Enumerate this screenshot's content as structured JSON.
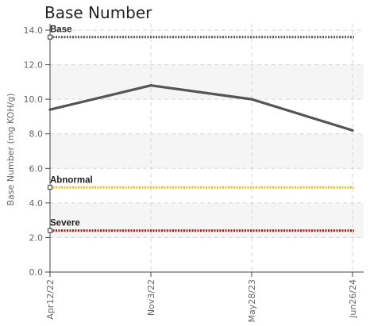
{
  "chart_data": {
    "type": "line",
    "title": "Base Number",
    "ylabel": "Base Number (mg KOH/g)",
    "xlabel": "",
    "ylim": [
      0,
      14
    ],
    "yticks": [
      "0.0",
      "2.0",
      "4.0",
      "6.0",
      "8.0",
      "10.0",
      "12.0",
      "14.0"
    ],
    "categories": [
      "Apr12/22",
      "Nov3/22",
      "May28/23",
      "Jun26/24"
    ],
    "series": [
      {
        "values": [
          9.4,
          10.8,
          10.0,
          8.2
        ],
        "color": "#555555"
      }
    ],
    "reference_lines": [
      {
        "name": "Base",
        "value": 13.6,
        "color": "#555555"
      },
      {
        "name": "Abnormal",
        "value": 4.9,
        "color": "#e8c800"
      },
      {
        "name": "Severe",
        "value": 2.4,
        "color": "#e00000"
      }
    ],
    "grid": true,
    "band_color": "#f5f5f5"
  }
}
